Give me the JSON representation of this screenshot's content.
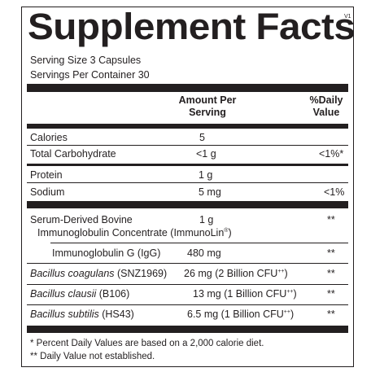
{
  "title": "Supplement Facts",
  "version": "V1",
  "serving_size": "Serving Size  3 Capsules",
  "servings_per_container": "Servings Per Container  30",
  "header": {
    "amount_line1": "Amount Per",
    "amount_line2": "Serving",
    "dv_line1": "%Daily",
    "dv_line2": "Value"
  },
  "rows": [
    {
      "name": "Calories",
      "amount": "5",
      "dv": ""
    },
    {
      "name": "Total Carbohydrate",
      "amount": "<1 g",
      "dv": "<1%*"
    },
    {
      "name": "Protein",
      "amount": "1 g",
      "dv": ""
    },
    {
      "name": "Sodium",
      "amount": "5 mg",
      "dv": "<1%"
    }
  ],
  "serum": {
    "name_line1": "Serum-Derived Bovine",
    "name_line2": "Immunoglobulin Concentrate (ImmunoLin",
    "reg_mark": "®",
    "close_paren": ")",
    "amount": "1 g",
    "dv": "**"
  },
  "igg": {
    "name": "Immunoglobulin G (IgG)",
    "amount": "480 mg",
    "dv": "**"
  },
  "probiotics": [
    {
      "species": "Bacillus coagulans",
      "strain": " (SNZ1969)",
      "amount": "26 mg (2 Billion CFU",
      "sup": "++",
      "close": ")",
      "dv": "**"
    },
    {
      "species": "Bacillus clausii",
      "strain": " (B106)",
      "amount": "13 mg (1 Billion CFU",
      "sup": "++",
      "close": ")",
      "dv": "**"
    },
    {
      "species": "Bacillus subtilis",
      "strain": " (HS43)",
      "amount": "6.5 mg (1 Billion CFU",
      "sup": "++",
      "close": ")",
      "dv": "**"
    }
  ],
  "footnotes": {
    "percent": "* Percent Daily Values are based on a 2,000 calorie diet.",
    "not_established": "** Daily Value not established."
  }
}
